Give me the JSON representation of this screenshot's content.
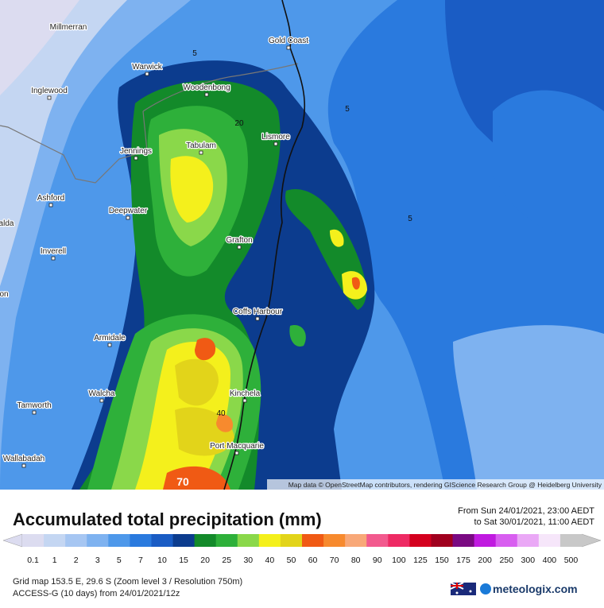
{
  "map": {
    "places": [
      "Millmerran",
      "Gold Coast",
      "Warwick",
      "Inglewood",
      "Woodenbong",
      "Lismore",
      "Tabulam",
      "Jennings",
      "Ashford",
      "Deepwater",
      "alda",
      "Inverell",
      "on",
      "Grafton",
      "Coffs Harbour",
      "Armidale",
      "Walcha",
      "Kinchela",
      "Tamworth",
      "Wallabadah",
      "Port Macquarie"
    ],
    "contour_labels": [
      "5",
      "5",
      "5",
      "20",
      "40",
      "70"
    ],
    "attribution": "Map data © OpenStreetMap contributors, rendering GIScience Research Group @ Heidelberg University"
  },
  "header": {
    "title": "Accumulated total precipitation (mm)",
    "from": "From Sun 24/01/2021, 23:00 AEDT",
    "to": "to Sat 30/01/2021, 11:00 AEDT"
  },
  "legend": {
    "levels": [
      {
        "label": "0.1",
        "color": "#dcdcf0"
      },
      {
        "label": "1",
        "color": "#c4d6f2"
      },
      {
        "label": "2",
        "color": "#a6c6f2"
      },
      {
        "label": "3",
        "color": "#7eb2f0"
      },
      {
        "label": "5",
        "color": "#4e98ea"
      },
      {
        "label": "7",
        "color": "#2a7ade"
      },
      {
        "label": "10",
        "color": "#1a5cc4"
      },
      {
        "label": "15",
        "color": "#0c3c8e"
      },
      {
        "label": "20",
        "color": "#138a2a"
      },
      {
        "label": "25",
        "color": "#2eb03a"
      },
      {
        "label": "30",
        "color": "#8ad84a"
      },
      {
        "label": "40",
        "color": "#f4f01c"
      },
      {
        "label": "50",
        "color": "#e2d41a"
      },
      {
        "label": "60",
        "color": "#f05a14"
      },
      {
        "label": "70",
        "color": "#f78a2e"
      },
      {
        "label": "80",
        "color": "#f8a878"
      },
      {
        "label": "90",
        "color": "#f25a8e"
      },
      {
        "label": "100",
        "color": "#ee2a64"
      },
      {
        "label": "125",
        "color": "#d4001e"
      },
      {
        "label": "150",
        "color": "#a0001e"
      },
      {
        "label": "175",
        "color": "#7a0a82"
      },
      {
        "label": "200",
        "color": "#c01ae0"
      },
      {
        "label": "250",
        "color": "#d85ef0"
      },
      {
        "label": "300",
        "color": "#eaa8f6"
      },
      {
        "label": "400",
        "color": "#f6e6fa"
      },
      {
        "label": "500",
        "color": "#c8c8c8"
      }
    ]
  },
  "footer": {
    "grid": "Grid map 153.5 E, 29.6 S (Zoom level 3 / Resolution 750m)",
    "model": "ACCESS-G (10 days) from 24/01/2021/12z",
    "brand": "meteologix.com"
  }
}
